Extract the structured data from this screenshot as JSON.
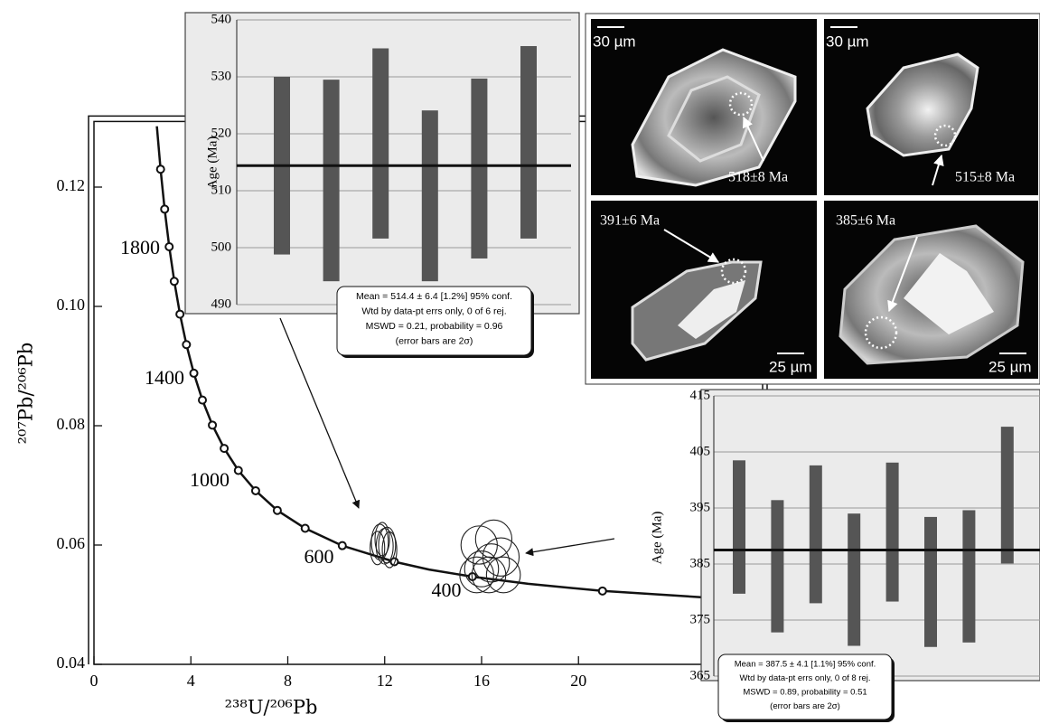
{
  "chart_data": [
    {
      "type": "concordia",
      "x_label": "²³⁸U/²⁰⁶Pb",
      "y_label": "²⁰⁷Pb/²⁰⁶Pb",
      "xlim": [
        0,
        27.6
      ],
      "ylim": [
        0.04,
        0.131
      ],
      "xticks": [
        0,
        4,
        8,
        12,
        16,
        20
      ],
      "yticks": [
        0.04,
        0.06,
        0.08,
        {
          "value": 0.1,
          "label": "0.10"
        },
        0.12
      ],
      "curve": {
        "x": [
          2.597,
          2.749,
          2.918,
          3.105,
          3.314,
          3.549,
          3.817,
          4.123,
          4.476,
          4.888,
          5.375,
          5.96,
          6.674,
          7.568,
          8.718,
          10.25,
          12.4,
          13.83,
          15.62,
          17.92,
          20.99,
          25.29
        ],
        "y": [
          0.1302,
          0.123,
          0.1163,
          0.11,
          0.1042,
          0.0987,
          0.0936,
          0.0888,
          0.0843,
          0.0801,
          0.0762,
          0.0725,
          0.0691,
          0.0658,
          0.0628,
          0.0599,
          0.0572,
          0.0559,
          0.0547,
          0.0535,
          0.0523,
          0.0512
        ]
      },
      "markers": {
        "x": [
          2.749,
          2.918,
          3.105,
          3.314,
          3.549,
          3.817,
          4.123,
          4.476,
          4.888,
          5.375,
          5.96,
          6.674,
          7.568,
          8.718,
          10.25,
          12.4,
          15.62,
          20.99
        ],
        "y": [
          0.123,
          0.1163,
          0.11,
          0.1042,
          0.0987,
          0.0936,
          0.0888,
          0.0843,
          0.0801,
          0.0762,
          0.0725,
          0.0691,
          0.0658,
          0.0628,
          0.0599,
          0.0572,
          0.0547,
          0.0523
        ]
      },
      "age_labels": [
        "1800",
        "1400",
        "1000",
        "600",
        "400"
      ],
      "ellipse_groups": [
        {
          "x": [
            11.8,
            12.0,
            11.9,
            12.1,
            11.7,
            12.2
          ],
          "y": [
            0.0605,
            0.0598,
            0.061,
            0.06,
            0.0595,
            0.0592
          ],
          "x_err": [
            0.35,
            0.35,
            0.3,
            0.35,
            0.3,
            0.3
          ],
          "y_err": [
            0.003,
            0.003,
            0.0028,
            0.003,
            0.0028,
            0.003
          ]
        },
        {
          "x": [
            15.9,
            16.5,
            16.0,
            16.8,
            16.3,
            16.9,
            15.8,
            16.4
          ],
          "y": [
            0.06,
            0.061,
            0.056,
            0.058,
            0.055,
            0.055,
            0.055,
            0.057
          ],
          "x_err": [
            0.75,
            0.75,
            0.7,
            0.75,
            0.7,
            0.7,
            0.7,
            0.75
          ],
          "y_err": [
            0.0032,
            0.0032,
            0.003,
            0.0032,
            0.003,
            0.003,
            0.003,
            0.0032
          ]
        }
      ]
    },
    {
      "type": "weighted_mean",
      "y_label": "Age (Ma)",
      "ylim": [
        490,
        540
      ],
      "yticks": [
        490,
        500,
        510,
        520,
        530,
        540
      ],
      "values": [
        514.4,
        511.8,
        518.3,
        509.1,
        513.9,
        518.5
      ],
      "errors": [
        15.6,
        17.7,
        16.7,
        15.0,
        15.8,
        16.9
      ],
      "mean": 514.4,
      "stats": [
        "Mean = 514.4 ± 6.4  [1.2%]  95% conf.",
        "Wtd by data-pt errs only, 0 of 6 rej.",
        "MSWD = 0.21, probability = 0.96",
        "(error bars are 2σ)"
      ]
    },
    {
      "type": "weighted_mean",
      "y_label": "Age (Ma)",
      "ylim": [
        365,
        415
      ],
      "yticks": [
        365,
        375,
        385,
        395,
        405,
        415
      ],
      "values": [
        391.6,
        384.6,
        390.3,
        382.2,
        390.7,
        381.8,
        382.8,
        397.3
      ],
      "errors": [
        11.9,
        11.8,
        12.3,
        11.8,
        12.4,
        11.6,
        11.8,
        12.2
      ],
      "mean": 387.5,
      "stats": [
        "Mean = 387.5 ± 4.1  [1.1%]  95% conf.",
        "Wtd by data-pt errs only, 0 of 8 rej.",
        "MSWD = 0.89, probability = 0.51",
        "(error bars are 2σ)"
      ]
    }
  ],
  "cl_images": [
    {
      "scale": "30 µm",
      "age": "518±8 Ma"
    },
    {
      "scale": "30 µm",
      "age": "515±8 Ma"
    },
    {
      "scale": "25 µm",
      "age": "391±6 Ma"
    },
    {
      "scale": "25 µm",
      "age": "385±6 Ma"
    }
  ]
}
